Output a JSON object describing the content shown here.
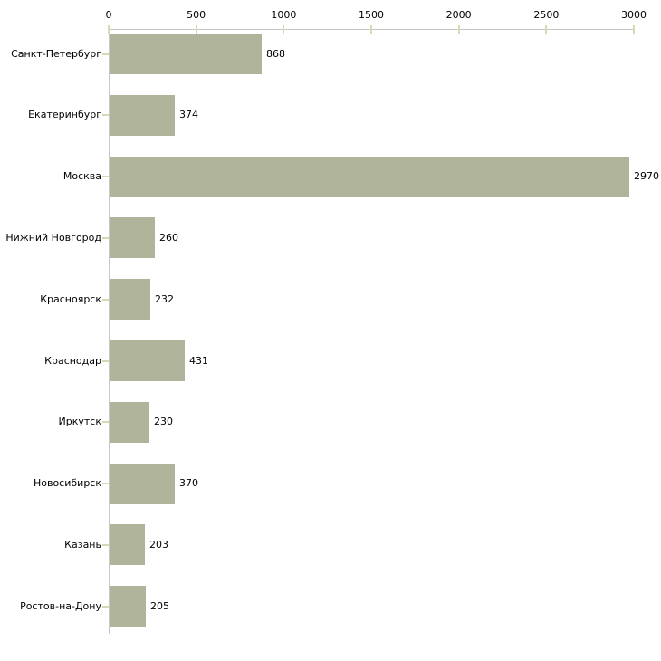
{
  "chart_data": {
    "type": "bar",
    "orientation": "horizontal",
    "title": "",
    "xlabel": "",
    "ylabel": "",
    "categories": [
      "Санкт-Петербург",
      "Екатеринбург",
      "Москва",
      "Нижний Новгород",
      "Красноярск",
      "Краснодар",
      "Иркутск",
      "Новосибирск",
      "Казань",
      "Ростов-на-Дону"
    ],
    "values": [
      868,
      374,
      2970,
      260,
      232,
      431,
      230,
      370,
      203,
      205
    ],
    "value_labels": [
      "868",
      "374",
      "2970",
      "260",
      "232",
      "431",
      "230",
      "370",
      "203",
      "205"
    ],
    "xlim": [
      0,
      3000
    ],
    "xticks": [
      0,
      500,
      1000,
      1500,
      2000,
      2500,
      3000
    ],
    "grid": false,
    "legend": false,
    "colors": {
      "bar_fill": "#afb49b",
      "axis_line": "#c8c8c8",
      "tick_mark": "#d8d8b4",
      "text": "#000000",
      "background": "#ffffff"
    }
  }
}
